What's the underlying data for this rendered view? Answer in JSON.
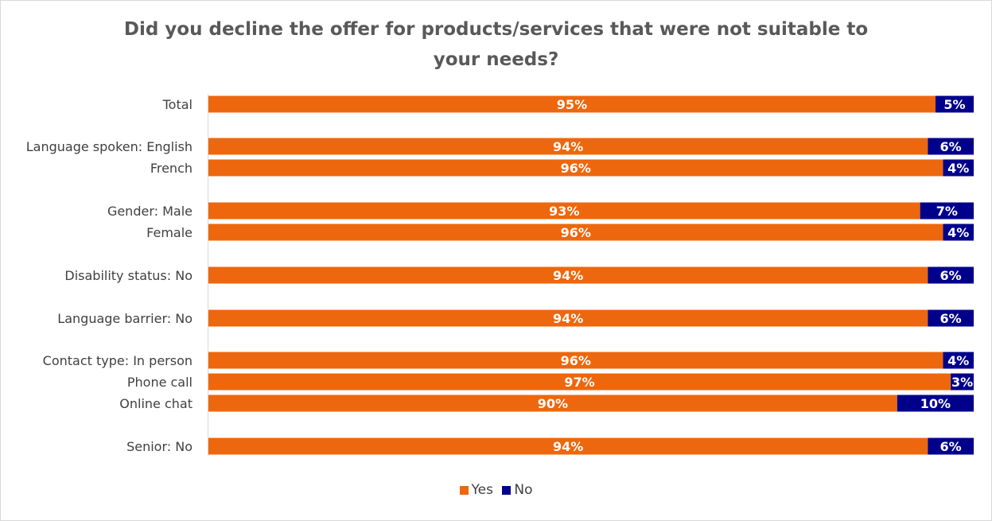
{
  "chart_data": {
    "type": "bar",
    "orientation": "horizontal",
    "stacked": true,
    "percent_stacked": true,
    "title": "Did you decline the offer for products/services that were not suitable to your needs?",
    "categories": [
      "Total",
      "Language spoken: English",
      "French",
      "Gender: Male",
      "Female",
      "Disability status: No",
      "Language barrier: No",
      "Contact type: In person",
      "Phone call",
      "Online chat",
      "Senior: No"
    ],
    "series": [
      {
        "name": "Yes",
        "color": "#ED670E",
        "values": [
          95,
          94,
          96,
          93,
          96,
          94,
          94,
          96,
          97,
          90,
          94
        ]
      },
      {
        "name": "No",
        "color": "#00008B",
        "values": [
          5,
          6,
          4,
          7,
          4,
          6,
          6,
          4,
          3,
          10,
          6
        ]
      }
    ],
    "value_suffix": "%",
    "xlim": [
      0,
      100
    ],
    "grid": false,
    "legend_position": "bottom",
    "axis_line_color": "#d9d9d9"
  }
}
